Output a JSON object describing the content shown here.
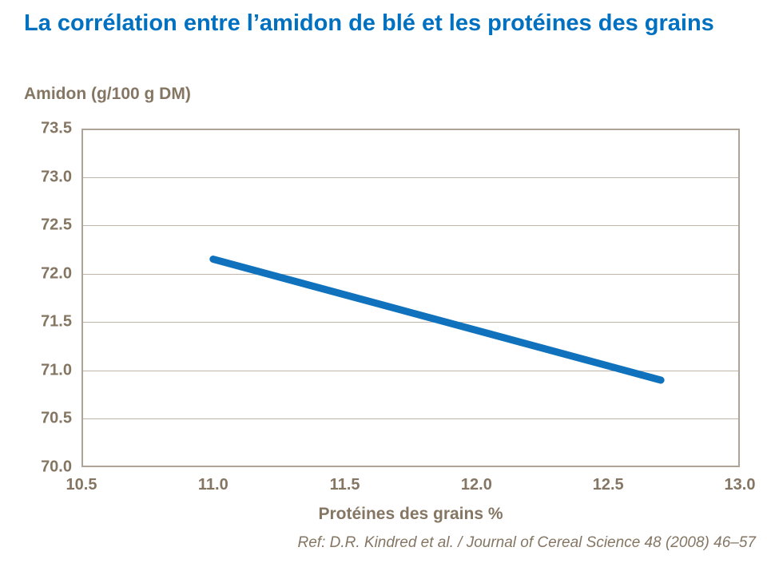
{
  "slide": {
    "title": "La corrélation entre l’amidon de blé et les protéines des grains",
    "reference": "Ref: D.R. Kindred et al. / Journal of Cereal Science 48 (2008) 46–57"
  },
  "colors": {
    "title_blue": "#0070C0",
    "line_blue": "#1072BC",
    "axis_text_brown": "#857663",
    "plot_border": "#AEA396",
    "gridline": "#BFB6A9",
    "background": "#FFFFFF"
  },
  "chart_data": {
    "type": "line",
    "title": "",
    "ylabel": "Amidon (g/100 g DM)",
    "xlabel": "Protéines des grains %",
    "xlim": [
      10.5,
      13.0
    ],
    "ylim": [
      70.0,
      73.5
    ],
    "xticks": [
      10.5,
      11.0,
      11.5,
      12.0,
      12.5,
      13.0
    ],
    "yticks": [
      70.0,
      70.5,
      71.0,
      71.5,
      72.0,
      72.5,
      73.0,
      73.5
    ],
    "tick_decimals": 1,
    "grid": "horizontal-only",
    "legend": "none",
    "line_width": 9,
    "series": [
      {
        "points": [
          [
            11.0,
            72.15
          ],
          [
            12.7,
            70.9
          ]
        ]
      }
    ]
  }
}
